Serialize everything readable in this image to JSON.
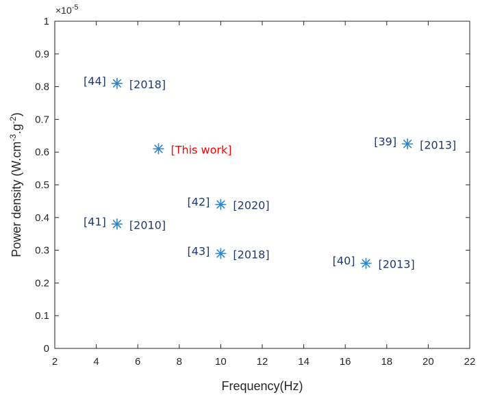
{
  "chart_data": {
    "type": "scatter",
    "title": "",
    "xlabel": "Frequency(Hz)",
    "ylabel": "Power density (W.cm",
    "ylabel_parts": {
      "a": "Power density (W.cm",
      "sup1": "-3",
      "b": ".g",
      "sup2": "-2",
      "c": ")"
    },
    "xlim": [
      2,
      22
    ],
    "ylim": [
      0,
      1
    ],
    "y_exponent": {
      "base": "×10",
      "power": "-5"
    },
    "xticks": [
      "2",
      "4",
      "6",
      "8",
      "10",
      "12",
      "14",
      "16",
      "18",
      "20",
      "22"
    ],
    "yticks": [
      "0",
      "0.1",
      "0.2",
      "0.3",
      "0.4",
      "0.5",
      "0.6",
      "0.7",
      "0.8",
      "0.9",
      "1"
    ],
    "marker": "asterisk",
    "marker_color": "#2e86c8",
    "label_color": "#1f3a6e",
    "highlight_color": "#ff0000",
    "grid": false,
    "points": [
      {
        "x": 5,
        "y": 0.81,
        "ref": "[44]",
        "year": "[2018]"
      },
      {
        "x": 7,
        "y": 0.61,
        "ref": "",
        "year": "[This work]",
        "highlight": true
      },
      {
        "x": 19,
        "y": 0.625,
        "ref": "[39]",
        "year": "[2013]"
      },
      {
        "x": 10,
        "y": 0.44,
        "ref": "[42]",
        "year": "[2020]"
      },
      {
        "x": 5,
        "y": 0.38,
        "ref": "[41]",
        "year": "[2010]"
      },
      {
        "x": 10,
        "y": 0.29,
        "ref": "[43]",
        "year": "[2018]"
      },
      {
        "x": 17,
        "y": 0.26,
        "ref": "[40]",
        "year": "[2013]"
      }
    ]
  }
}
